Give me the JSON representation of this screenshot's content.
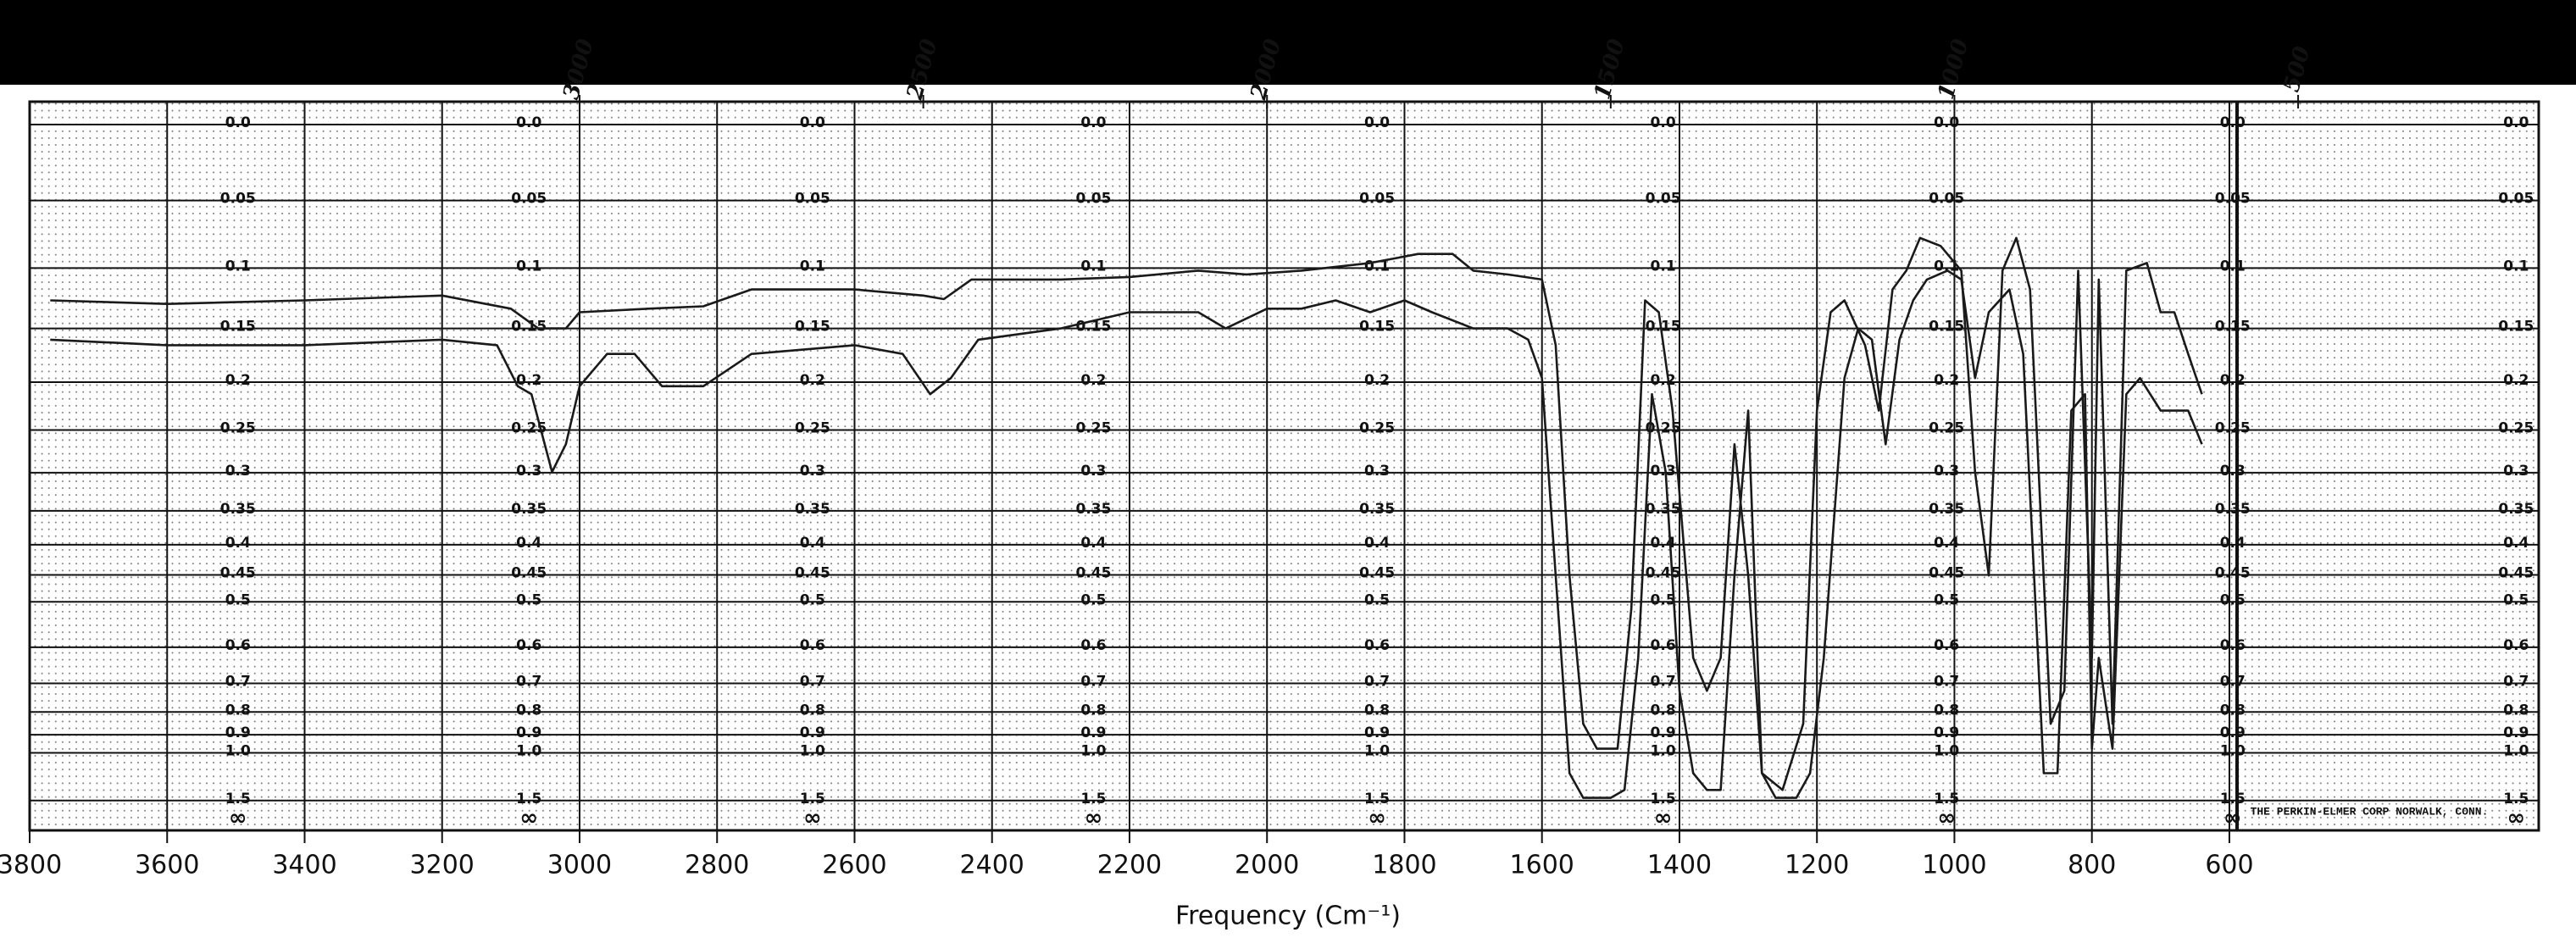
{
  "chart_data": {
    "type": "line",
    "xlabel": "Frequency (Cm⁻¹)",
    "footer_note": "THE PERKIN-ELMER CORP NORWALK, CONN.",
    "xlim": [
      3800,
      150
    ],
    "xticks": [
      3800,
      3600,
      3400,
      3200,
      3000,
      2800,
      2600,
      2400,
      2200,
      2000,
      1800,
      1600,
      1400,
      1200,
      1000,
      800,
      600
    ],
    "x2ticks": [
      3000,
      2500,
      2000,
      1500,
      1000,
      500
    ],
    "yscale": "transmittance",
    "ylim": [
      0,
      3
    ],
    "yticks": [
      {
        "value": 0,
        "label": "0.0"
      },
      0.05,
      0.1,
      0.15,
      0.2,
      0.25,
      0.3,
      0.35,
      0.4,
      0.45,
      0.5,
      0.6,
      0.7,
      0.8,
      0.9,
      {
        "value": 1,
        "label": "1.0"
      },
      1.5
    ],
    "y_infinity_label": "∞",
    "grid": true,
    "series": [
      {
        "color": "#1a1a1a",
        "x": [
          3770,
          3600,
          3400,
          3200,
          3100,
          3060,
          3020,
          3000,
          2900,
          2820,
          2750,
          2600,
          2500,
          2470,
          2430,
          2300,
          2200,
          2100,
          2030,
          1950,
          1850,
          1780,
          1730,
          1700,
          1650,
          1600,
          1580,
          1560,
          1540,
          1520,
          1490,
          1470,
          1450,
          1430,
          1410,
          1380,
          1360,
          1340,
          1320,
          1300,
          1280,
          1250,
          1220,
          1200,
          1180,
          1160,
          1130,
          1110,
          1090,
          1070,
          1050,
          1020,
          990,
          970,
          950,
          930,
          910,
          890,
          860,
          840,
          820,
          800,
          790,
          770,
          750,
          720,
          700,
          680,
          660,
          640
        ],
        "values": [
          0.126,
          0.129,
          0.126,
          0.122,
          0.133,
          0.15,
          0.15,
          0.136,
          0.133,
          0.131,
          0.117,
          0.117,
          0.122,
          0.125,
          0.109,
          0.109,
          0.107,
          0.102,
          0.105,
          0.102,
          0.096,
          0.089,
          0.089,
          0.102,
          0.105,
          0.109,
          0.165,
          0.451,
          0.849,
          0.975,
          0.975,
          0.513,
          0.126,
          0.136,
          0.229,
          0.627,
          0.724,
          0.627,
          0.266,
          0.451,
          1.15,
          1.33,
          0.849,
          0.229,
          0.136,
          0.126,
          0.165,
          0.229,
          0.117,
          0.102,
          0.077,
          0.083,
          0.102,
          0.299,
          0.451,
          0.102,
          0.077,
          0.117,
          0.849,
          0.724,
          0.102,
          0.627,
          0.109,
          0.849,
          0.102,
          0.096,
          0.136,
          0.136,
          0.173,
          0.212
        ]
      },
      {
        "color": "#1a1a1a",
        "x": [
          3770,
          3600,
          3400,
          3200,
          3120,
          3090,
          3070,
          3040,
          3020,
          3000,
          2960,
          2920,
          2880,
          2820,
          2750,
          2600,
          2530,
          2490,
          2460,
          2420,
          2300,
          2200,
          2100,
          2060,
          2000,
          1950,
          1900,
          1850,
          1800,
          1760,
          1700,
          1650,
          1620,
          1600,
          1580,
          1560,
          1540,
          1500,
          1480,
          1460,
          1440,
          1420,
          1400,
          1380,
          1360,
          1340,
          1320,
          1300,
          1280,
          1260,
          1230,
          1210,
          1190,
          1160,
          1140,
          1120,
          1100,
          1080,
          1060,
          1040,
          1010,
          990,
          970,
          950,
          920,
          900,
          870,
          850,
          830,
          810,
          800,
          790,
          770,
          750,
          730,
          700,
          680,
          660,
          640
        ],
        "values": [
          0.16,
          0.165,
          0.165,
          0.16,
          0.165,
          0.204,
          0.212,
          0.299,
          0.266,
          0.204,
          0.173,
          0.173,
          0.204,
          0.204,
          0.173,
          0.165,
          0.173,
          0.212,
          0.196,
          0.16,
          0.15,
          0.136,
          0.136,
          0.15,
          0.133,
          0.133,
          0.126,
          0.136,
          0.126,
          0.136,
          0.15,
          0.15,
          0.16,
          0.196,
          0.451,
          1.15,
          1.45,
          1.45,
          1.33,
          0.627,
          0.212,
          0.299,
          0.724,
          1.15,
          1.33,
          1.33,
          0.451,
          0.229,
          1.15,
          1.45,
          1.45,
          1.15,
          0.627,
          0.196,
          0.15,
          0.16,
          0.266,
          0.16,
          0.126,
          0.109,
          0.102,
          0.109,
          0.196,
          0.136,
          0.117,
          0.173,
          1.15,
          1.15,
          0.229,
          0.212,
          0.975,
          0.627,
          0.975,
          0.212,
          0.196,
          0.229,
          0.229,
          0.229,
          0.266
        ]
      }
    ]
  }
}
